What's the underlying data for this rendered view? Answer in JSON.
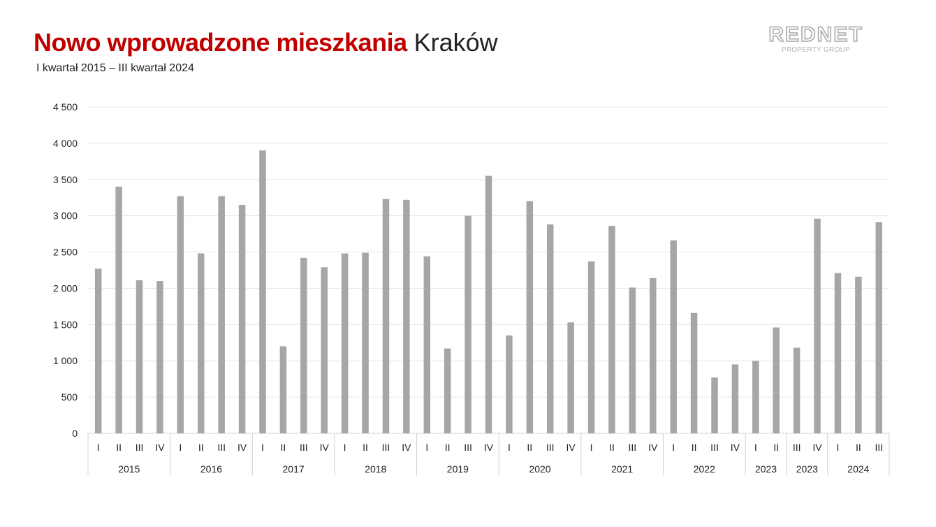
{
  "header": {
    "title_bold": "Nowo wprowadzone mieszkania",
    "title_city": "Kraków",
    "subtitle": "I kwartał 2015 – III kwartał 2024"
  },
  "logo": {
    "name": "REDNET",
    "sub": "PROPERTY GROUP"
  },
  "colors": {
    "title": "#c00000",
    "bar": "#a6a6a6",
    "grid": "#e6e6e6"
  },
  "chart_data": {
    "type": "bar",
    "ylim": [
      0,
      4500
    ],
    "yticks": [
      {
        "value": 0,
        "label": "0"
      },
      {
        "value": 500,
        "label": "500"
      },
      {
        "value": 1000,
        "label": "1 000"
      },
      {
        "value": 1500,
        "label": "1 500"
      },
      {
        "value": 2000,
        "label": "2 000"
      },
      {
        "value": 2500,
        "label": "2 500"
      },
      {
        "value": 3000,
        "label": "3 000"
      },
      {
        "value": 3500,
        "label": "3 500"
      },
      {
        "value": 4000,
        "label": "4 000"
      },
      {
        "value": 4500,
        "label": "4 500"
      }
    ],
    "groups": [
      {
        "year": "2015",
        "quarters": [
          "I",
          "II",
          "III",
          "IV"
        ],
        "values": [
          2270,
          3400,
          2110,
          2100
        ]
      },
      {
        "year": "2016",
        "quarters": [
          "I",
          "II",
          "III",
          "IV"
        ],
        "values": [
          3270,
          2480,
          3270,
          3150
        ]
      },
      {
        "year": "2017",
        "quarters": [
          "I",
          "II",
          "III",
          "IV"
        ],
        "values": [
          3900,
          1200,
          2420,
          2290
        ]
      },
      {
        "year": "2018",
        "quarters": [
          "I",
          "II",
          "III",
          "IV"
        ],
        "values": [
          2480,
          2490,
          3230,
          3220
        ]
      },
      {
        "year": "2019",
        "quarters": [
          "I",
          "II",
          "III",
          "IV"
        ],
        "values": [
          2440,
          1170,
          3000,
          3550
        ]
      },
      {
        "year": "2020",
        "quarters": [
          "I",
          "II",
          "III",
          "IV"
        ],
        "values": [
          1350,
          3200,
          2880,
          1530
        ]
      },
      {
        "year": "2021",
        "quarters": [
          "I",
          "II",
          "III",
          "IV"
        ],
        "values": [
          2370,
          2860,
          2010,
          2140
        ]
      },
      {
        "year": "2022",
        "quarters": [
          "I",
          "II",
          "III",
          "IV"
        ],
        "values": [
          2660,
          1660,
          770,
          950
        ]
      },
      {
        "year": "2023",
        "quarters": [
          "I",
          "II"
        ],
        "values": [
          1000,
          1460
        ]
      },
      {
        "year": "2023",
        "quarters": [
          "III",
          "IV"
        ],
        "values": [
          1180,
          2960
        ]
      },
      {
        "year": "2024",
        "quarters": [
          "I",
          "II",
          "III"
        ],
        "values": [
          2210,
          2160,
          2910
        ]
      }
    ]
  }
}
